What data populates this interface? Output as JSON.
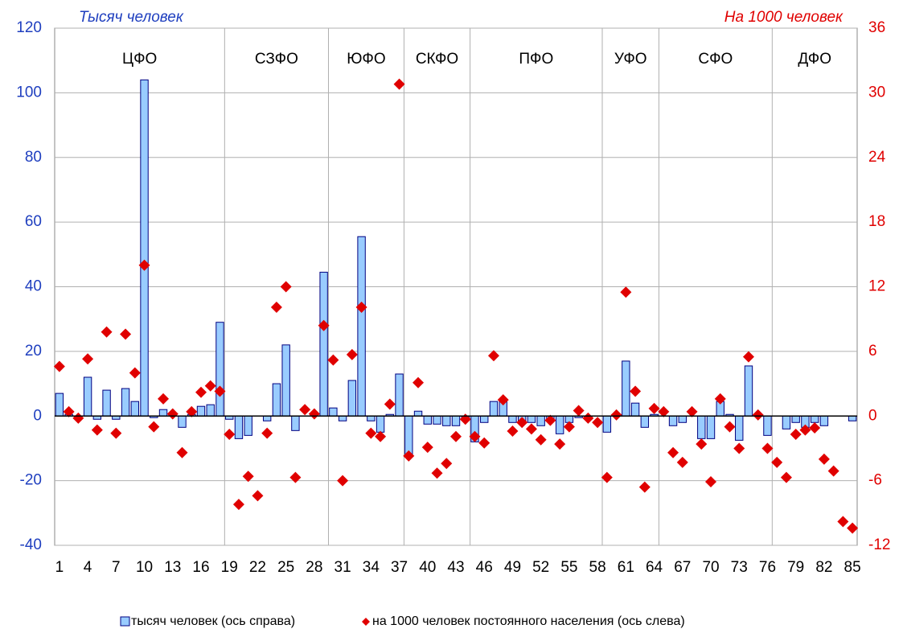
{
  "chart_data": {
    "type": "bar-scatter",
    "y_axis_label": "Тысяч человек",
    "y2_axis_label": "На 1000 человек",
    "categories": [
      1,
      null,
      null,
      4,
      null,
      null,
      7,
      null,
      null,
      10,
      null,
      null,
      13,
      null,
      null,
      16,
      null,
      null,
      19,
      null,
      null,
      22,
      null,
      null,
      25,
      null,
      null,
      28,
      null,
      null,
      31,
      null,
      null,
      34,
      null,
      null,
      37,
      null,
      null,
      40,
      null,
      null,
      43,
      null,
      null,
      46,
      null,
      null,
      49,
      null,
      null,
      52,
      null,
      null,
      55,
      null,
      null,
      58,
      null,
      null,
      61,
      null,
      null,
      64,
      null,
      null,
      67,
      null,
      null,
      70,
      null,
      null,
      73,
      null,
      null,
      76,
      null,
      null,
      79,
      null,
      null,
      82,
      null,
      null,
      85
    ],
    "regions": [
      {
        "name": "ЦФО",
        "from": 1,
        "to": 18
      },
      {
        "name": "СЗФО",
        "from": 19,
        "to": 29
      },
      {
        "name": "ЮФО",
        "from": 30,
        "to": 37
      },
      {
        "name": "СКФО",
        "from": 38,
        "to": 44
      },
      {
        "name": "ПФО",
        "from": 45,
        "to": 58
      },
      {
        "name": "УФО",
        "from": 59,
        "to": 64
      },
      {
        "name": "СФО",
        "from": 65,
        "to": 76
      },
      {
        "name": "ДФО",
        "from": 77,
        "to": 85
      }
    ],
    "series": [
      {
        "name": "тысяч человек (ось справа)",
        "color": "#99ccff",
        "edge_color": "#000080",
        "values": [
          7,
          0.5,
          0,
          12,
          -1,
          8,
          -1,
          8.5,
          4.5,
          104,
          -0.5,
          2,
          0.5,
          -3.5,
          0.5,
          3,
          3.5,
          29,
          -1,
          -7,
          -6,
          0,
          -1.5,
          10,
          22,
          -4.5,
          0,
          0.5,
          44.5,
          2.5,
          -1.5,
          11,
          55.5,
          -1.5,
          -5,
          0.5,
          13,
          -12,
          1.5,
          -2.5,
          -2.5,
          -3,
          -3,
          -0.5,
          -8,
          -2,
          4.5,
          4.5,
          -2,
          -1.5,
          -2,
          -3,
          -1.5,
          -5.5,
          -2,
          -0.5,
          -1,
          0,
          -5,
          0,
          17,
          4,
          -3.5,
          0.5,
          0,
          -3,
          -2,
          0,
          -7,
          -7,
          4.5,
          0.5,
          -7.5,
          15.5,
          0,
          -6,
          0,
          -4,
          -2,
          -3.5,
          -2,
          -3,
          0,
          0,
          -1.5
        ]
      },
      {
        "name": "на 1000 человек постоянного населения (ось слева)",
        "color": "#e00000",
        "axis": "y2",
        "values": [
          4.6,
          0.4,
          -0.2,
          5.3,
          -1.3,
          7.8,
          -1.6,
          7.6,
          4.0,
          14.0,
          -1.0,
          1.6,
          0.2,
          -3.4,
          0.4,
          2.2,
          2.8,
          2.3,
          -1.7,
          -8.2,
          -5.6,
          -7.4,
          -1.6,
          10.1,
          12.0,
          -5.7,
          0.6,
          0.2,
          8.4,
          5.2,
          -6.0,
          5.7,
          10.1,
          -1.6,
          -1.9,
          1.1,
          30.8,
          -3.7,
          3.1,
          -2.9,
          -5.3,
          -4.4,
          -1.9,
          -0.3,
          -1.9,
          -2.5,
          5.6,
          1.5,
          -1.4,
          -0.6,
          -1.2,
          -2.2,
          -0.4,
          -2.6,
          -1.0,
          0.5,
          -0.2,
          -0.6,
          -5.7,
          0.1,
          11.5,
          2.3,
          -6.6,
          0.7,
          0.4,
          -3.4,
          -4.3,
          0.4,
          -2.6,
          -6.1,
          1.6,
          -1.0,
          -3.0,
          5.5,
          0.1,
          -3.0,
          -4.3,
          -5.7,
          -1.7,
          -1.3,
          -1.1,
          -4.0,
          -5.1,
          -9.8,
          -10.4
        ]
      }
    ],
    "ylim": [
      -40,
      120
    ],
    "yticks": [
      -40,
      -20,
      0,
      20,
      40,
      60,
      80,
      100,
      120
    ],
    "y2lim": [
      -12,
      36
    ],
    "y2ticks": [
      -12,
      -6,
      0,
      6,
      12,
      18,
      24,
      30,
      36
    ],
    "y_color": "#1f3fbf",
    "y2_color": "#e00000",
    "grid": true,
    "legend": "bottom"
  }
}
